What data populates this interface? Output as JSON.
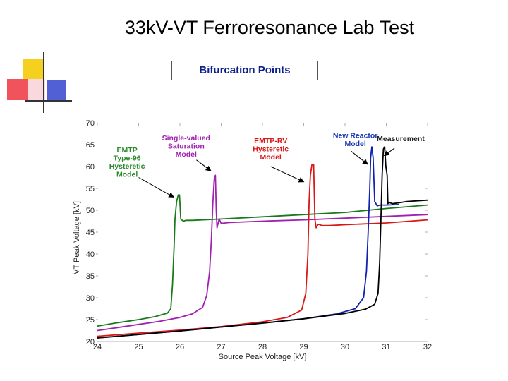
{
  "slide": {
    "title": "33kV-VT Ferroresonance Lab Test",
    "subtitle": "Bifurcation Points"
  },
  "chart_data": {
    "type": "line",
    "xlabel": "Source Peak Voltage [kV]",
    "ylabel": "VT Peak Voltage [kV]",
    "xlim": [
      24,
      32
    ],
    "ylim": [
      20,
      70
    ],
    "xticks": [
      24,
      25,
      26,
      27,
      28,
      29,
      30,
      31,
      32
    ],
    "yticks": [
      20,
      25,
      30,
      35,
      40,
      45,
      50,
      55,
      60,
      65,
      70
    ],
    "grid": false,
    "series": [
      {
        "name": "EMTP Type-96 Hysteretic Model",
        "color": "#1a7a1a",
        "points": [
          [
            24,
            23.5
          ],
          [
            24.5,
            24.3
          ],
          [
            25,
            25.0
          ],
          [
            25.4,
            25.7
          ],
          [
            25.7,
            26.5
          ],
          [
            25.78,
            27.5
          ],
          [
            25.82,
            33
          ],
          [
            25.86,
            42
          ],
          [
            25.88,
            48
          ],
          [
            25.92,
            52
          ],
          [
            25.96,
            53.5
          ],
          [
            25.99,
            53.5
          ],
          [
            26.02,
            48
          ],
          [
            26.08,
            47.5
          ],
          [
            26.15,
            47.7
          ],
          [
            26.3,
            47.7
          ],
          [
            27,
            48
          ],
          [
            28,
            48.5
          ],
          [
            29,
            49
          ],
          [
            30,
            49.5
          ],
          [
            31,
            50.4
          ],
          [
            32,
            51.2
          ]
        ]
      },
      {
        "name": "Single-valued Saturation Model",
        "color": "#a020b0",
        "points": [
          [
            24,
            22.5
          ],
          [
            24.5,
            23.2
          ],
          [
            25,
            23.9
          ],
          [
            25.5,
            24.6
          ],
          [
            26,
            25.5
          ],
          [
            26.3,
            26.3
          ],
          [
            26.55,
            27.8
          ],
          [
            26.65,
            30.5
          ],
          [
            26.72,
            36
          ],
          [
            26.76,
            43
          ],
          [
            26.8,
            52
          ],
          [
            26.83,
            57
          ],
          [
            26.86,
            58
          ],
          [
            26.88,
            50
          ],
          [
            26.9,
            46
          ],
          [
            26.95,
            48
          ],
          [
            27.0,
            47
          ],
          [
            27.2,
            47.2
          ],
          [
            28,
            47.5
          ],
          [
            29,
            47.8
          ],
          [
            30,
            48.2
          ],
          [
            31,
            48.6
          ],
          [
            32,
            49.0
          ]
        ]
      },
      {
        "name": "EMTP-RV Hysteretic Model",
        "color": "#d81818",
        "points": [
          [
            24,
            21.2
          ],
          [
            25,
            21.9
          ],
          [
            26,
            22.6
          ],
          [
            27,
            23.4
          ],
          [
            28,
            24.5
          ],
          [
            28.6,
            25.5
          ],
          [
            28.95,
            27.2
          ],
          [
            29.05,
            31
          ],
          [
            29.1,
            40
          ],
          [
            29.13,
            52
          ],
          [
            29.16,
            58
          ],
          [
            29.2,
            60.5
          ],
          [
            29.24,
            60.5
          ],
          [
            29.27,
            48
          ],
          [
            29.3,
            46
          ],
          [
            29.35,
            46.8
          ],
          [
            29.45,
            46.5
          ],
          [
            29.6,
            46.5
          ],
          [
            30,
            46.7
          ],
          [
            31,
            47.1
          ],
          [
            32,
            47.8
          ]
        ]
      },
      {
        "name": "New Reactor Model",
        "color": "#1020b0",
        "points": [
          [
            24,
            20.8
          ],
          [
            25,
            21.6
          ],
          [
            26,
            22.4
          ],
          [
            27,
            23.3
          ],
          [
            28,
            24.2
          ],
          [
            29,
            25.2
          ],
          [
            29.8,
            26.3
          ],
          [
            30.25,
            27.5
          ],
          [
            30.45,
            30
          ],
          [
            30.52,
            36
          ],
          [
            30.56,
            45
          ],
          [
            30.6,
            55
          ],
          [
            30.62,
            62
          ],
          [
            30.65,
            64.5
          ],
          [
            30.68,
            62
          ],
          [
            30.72,
            52
          ],
          [
            30.78,
            51
          ],
          [
            30.85,
            51.2
          ],
          [
            31.0,
            51.2
          ],
          [
            31.3,
            51.3
          ]
        ]
      },
      {
        "name": "Measurement",
        "color": "#000000",
        "points": [
          [
            24,
            20.8
          ],
          [
            25,
            21.6
          ],
          [
            26,
            22.4
          ],
          [
            27,
            23.3
          ],
          [
            28,
            24.2
          ],
          [
            29,
            25.2
          ],
          [
            30,
            26.4
          ],
          [
            30.5,
            27.4
          ],
          [
            30.72,
            28.5
          ],
          [
            30.8,
            31
          ],
          [
            30.84,
            38
          ],
          [
            30.87,
            48
          ],
          [
            30.9,
            58
          ],
          [
            30.93,
            64
          ],
          [
            30.96,
            64.5
          ],
          [
            30.99,
            60
          ],
          [
            31.02,
            58
          ],
          [
            31.04,
            51.5
          ],
          [
            31.06,
            51.8
          ],
          [
            31.15,
            51.5
          ],
          [
            31.3,
            51.7
          ],
          [
            31.5,
            52.0
          ],
          [
            32,
            52.3
          ]
        ]
      }
    ],
    "annotations": [
      {
        "id": "emtp96",
        "lines": [
          "EMTP",
          "Type-96",
          "Hysteretic",
          "Model"
        ],
        "color": "#2a8a2a",
        "text_at": [
          24.72,
          63.2
        ],
        "arrow_from": [
          25.0,
          57.5
        ],
        "arrow_to": [
          25.85,
          53.0
        ]
      },
      {
        "id": "single",
        "lines": [
          "Single-valued",
          "Saturation",
          "Model"
        ],
        "color": "#a020b0",
        "text_at": [
          26.15,
          66.0
        ],
        "arrow_from": [
          26.4,
          61.5
        ],
        "arrow_to": [
          26.75,
          59.0
        ]
      },
      {
        "id": "emtprv",
        "lines": [
          "EMTP-RV",
          "Hysteretic",
          "Model"
        ],
        "color": "#d81818",
        "text_at": [
          28.2,
          65.3
        ],
        "arrow_from": [
          28.2,
          60.0
        ],
        "arrow_to": [
          29.0,
          56.5
        ]
      },
      {
        "id": "newreactor",
        "lines": [
          "New Reactor",
          "Model"
        ],
        "color": "#1a35b0",
        "text_at": [
          30.25,
          66.5
        ],
        "arrow_from": [
          30.15,
          63.5
        ],
        "arrow_to": [
          30.55,
          60.5
        ]
      },
      {
        "id": "measure",
        "lines": [
          "Measurement"
        ],
        "color": "#222222",
        "text_at": [
          31.35,
          65.8
        ],
        "arrow_from": [
          31.2,
          64.2
        ],
        "arrow_to": [
          30.95,
          62.5
        ]
      }
    ]
  }
}
